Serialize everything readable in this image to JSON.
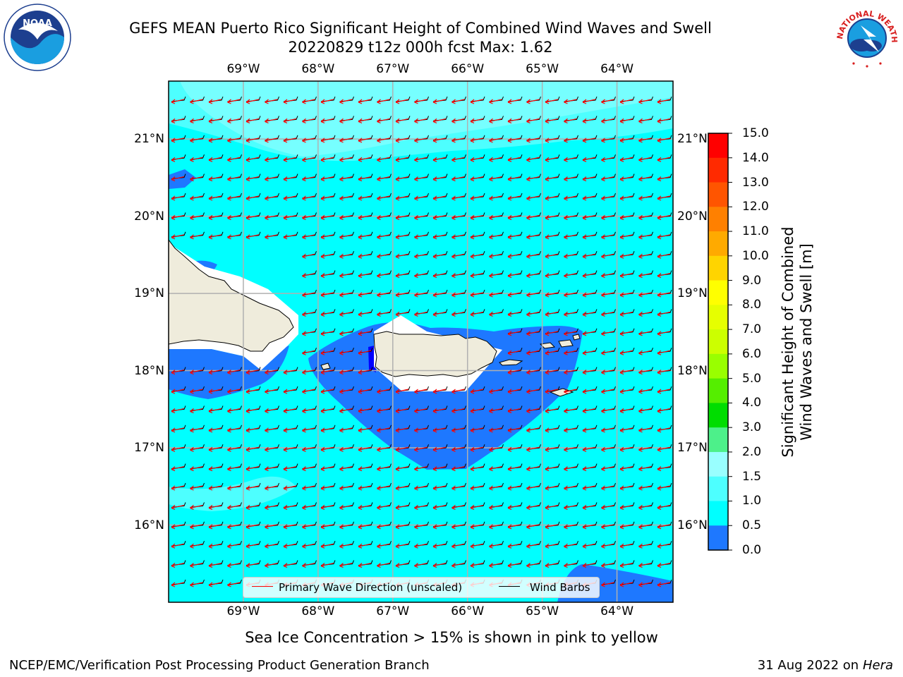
{
  "title": {
    "line1": "GEFS MEAN Puerto Rico Significant Height of Combined Wind Waves and Swell",
    "line2": "20220829 t12z 000h fcst   Max: 1.62"
  },
  "map": {
    "lon_ticks": [
      "69°W",
      "68°W",
      "67°W",
      "66°W",
      "65°W",
      "64°W"
    ],
    "lon_values": [
      -69,
      -68,
      -67,
      -66,
      -65,
      -64
    ],
    "lat_ticks": [
      "21°N",
      "20°N",
      "19°N",
      "18°N",
      "17°N",
      "16°N"
    ],
    "lat_values": [
      21,
      20,
      19,
      18,
      17,
      16
    ],
    "extent": {
      "lon_min": -70,
      "lon_max": -63.25,
      "lat_min": 15,
      "lat_max": 21.75
    },
    "colors": {
      "ocean_base": "#00ffff",
      "high_band": "#4dffff",
      "peak_band": "#99ffff",
      "low_band": "#1e78ff",
      "very_low": "#0000ff",
      "land": "#efecdc",
      "wave_arrow": "#ff0000",
      "wind_barb": "#000000",
      "grid": "#b0b0b0"
    }
  },
  "colorbar": {
    "labels": [
      "15.0",
      "14.0",
      "13.0",
      "12.0",
      "11.0",
      "10.0",
      "9.0",
      "8.0",
      "7.0",
      "6.0",
      "5.0",
      "4.0",
      "3.0",
      "2.0",
      "1.5",
      "1.0",
      "0.5",
      "0.0"
    ],
    "colors": [
      "#ff0000",
      "#ff2a00",
      "#ff5500",
      "#ff8000",
      "#ffaa00",
      "#ffd400",
      "#ffff00",
      "#e6ff00",
      "#ccff00",
      "#99ff00",
      "#55ee00",
      "#00dd00",
      "#4df08a",
      "#99ffff",
      "#4dffff",
      "#00ffff",
      "#1e78ff",
      "#0000ff"
    ],
    "title_line1": "Significant Height of Combined",
    "title_line2": "Wind Waves and Swell [m]"
  },
  "legend": {
    "wave_label": "Primary Wave Direction (unscaled)",
    "barb_label": "Wind Barbs"
  },
  "logos": {
    "noaa_text": "NOAA",
    "nws_text": "NATIONAL WEATHER SERVICE"
  },
  "footer": {
    "note": "Sea Ice Concentration > 15% is shown in pink to yellow",
    "left": "NCEP/EMC/Verification Post Processing Product Generation Branch",
    "date": "31 Aug 2022 on",
    "host": "Hera"
  }
}
